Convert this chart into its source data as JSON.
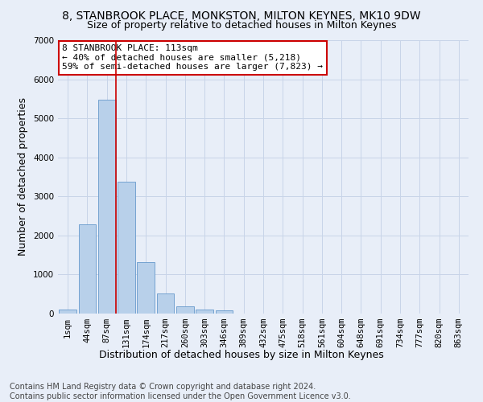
{
  "title": "8, STANBROOK PLACE, MONKSTON, MILTON KEYNES, MK10 9DW",
  "subtitle": "Size of property relative to detached houses in Milton Keynes",
  "xlabel": "Distribution of detached houses by size in Milton Keynes",
  "ylabel": "Number of detached properties",
  "footer_line1": "Contains HM Land Registry data © Crown copyright and database right 2024.",
  "footer_line2": "Contains public sector information licensed under the Open Government Licence v3.0.",
  "bar_labels": [
    "1sqm",
    "44sqm",
    "87sqm",
    "131sqm",
    "174sqm",
    "217sqm",
    "260sqm",
    "303sqm",
    "346sqm",
    "389sqm",
    "432sqm",
    "475sqm",
    "518sqm",
    "561sqm",
    "604sqm",
    "648sqm",
    "691sqm",
    "734sqm",
    "777sqm",
    "820sqm",
    "863sqm"
  ],
  "bar_values": [
    100,
    2280,
    5480,
    3380,
    1310,
    510,
    185,
    100,
    75,
    0,
    0,
    0,
    0,
    0,
    0,
    0,
    0,
    0,
    0,
    0,
    0
  ],
  "bar_color": "#b8d0ea",
  "bar_edge_color": "#6699cc",
  "grid_color": "#c8d4e8",
  "background_color": "#e8eef8",
  "vline_color": "#cc0000",
  "vline_x_index": 2,
  "annotation_text": "8 STANBROOK PLACE: 113sqm\n← 40% of detached houses are smaller (5,218)\n59% of semi-detached houses are larger (7,823) →",
  "annotation_box_edgecolor": "#cc0000",
  "annotation_box_facecolor": "#ffffff",
  "ylim": [
    0,
    7000
  ],
  "yticks": [
    0,
    1000,
    2000,
    3000,
    4000,
    5000,
    6000,
    7000
  ],
  "title_fontsize": 10,
  "subtitle_fontsize": 9,
  "axis_label_fontsize": 9,
  "tick_fontsize": 7.5,
  "annotation_fontsize": 8,
  "footer_fontsize": 7
}
